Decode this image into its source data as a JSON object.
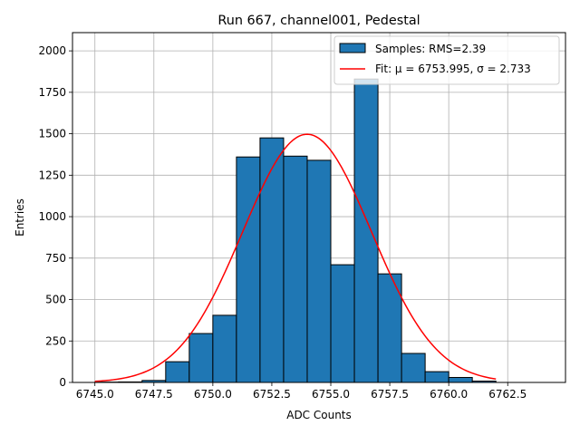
{
  "chart_data": {
    "type": "bar",
    "title": "Run 667, channel001, Pedestal",
    "xlabel": "ADC Counts",
    "ylabel": "Entries",
    "xlim": [
      6744.05,
      6764.95
    ],
    "ylim": [
      0,
      2110
    ],
    "xticks": [
      6745.0,
      6747.5,
      6750.0,
      6752.5,
      6755.0,
      6757.5,
      6760.0,
      6762.5
    ],
    "xtick_labels": [
      "6745.0",
      "6747.5",
      "6750.0",
      "6752.5",
      "6755.0",
      "6757.5",
      "6760.0",
      "6762.5"
    ],
    "yticks": [
      0,
      250,
      500,
      750,
      1000,
      1250,
      1500,
      1750,
      2000
    ],
    "ytick_labels": [
      "0",
      "250",
      "500",
      "750",
      "1000",
      "1250",
      "1500",
      "1750",
      "2000"
    ],
    "grid": true,
    "legend_position": "top-right",
    "histogram": {
      "name": "Samples: RMS=2.39",
      "color": "#1f77b4",
      "edgecolor": "#000000",
      "bins": [
        {
          "x0": 6745,
          "x1": 6746,
          "value": 2
        },
        {
          "x0": 6746,
          "x1": 6747,
          "value": 3
        },
        {
          "x0": 6747,
          "x1": 6748,
          "value": 12
        },
        {
          "x0": 6748,
          "x1": 6749,
          "value": 125
        },
        {
          "x0": 6749,
          "x1": 6750,
          "value": 295
        },
        {
          "x0": 6750,
          "x1": 6751,
          "value": 405
        },
        {
          "x0": 6751,
          "x1": 6752,
          "value": 1360
        },
        {
          "x0": 6752,
          "x1": 6753,
          "value": 1475
        },
        {
          "x0": 6753,
          "x1": 6754,
          "value": 1365
        },
        {
          "x0": 6754,
          "x1": 6755,
          "value": 1340
        },
        {
          "x0": 6755,
          "x1": 6756,
          "value": 710
        },
        {
          "x0": 6756,
          "x1": 6757,
          "value": 1830
        },
        {
          "x0": 6757,
          "x1": 6758,
          "value": 655
        },
        {
          "x0": 6758,
          "x1": 6759,
          "value": 175
        },
        {
          "x0": 6759,
          "x1": 6760,
          "value": 65
        },
        {
          "x0": 6760,
          "x1": 6761,
          "value": 30
        },
        {
          "x0": 6761,
          "x1": 6762,
          "value": 8
        }
      ]
    },
    "fit": {
      "name": "Fit: μ = 6753.995, σ = 2.733",
      "color": "#ff0000",
      "mu": 6753.995,
      "sigma": 2.733,
      "amplitude": 1497,
      "x_range": [
        6745,
        6762
      ]
    }
  }
}
